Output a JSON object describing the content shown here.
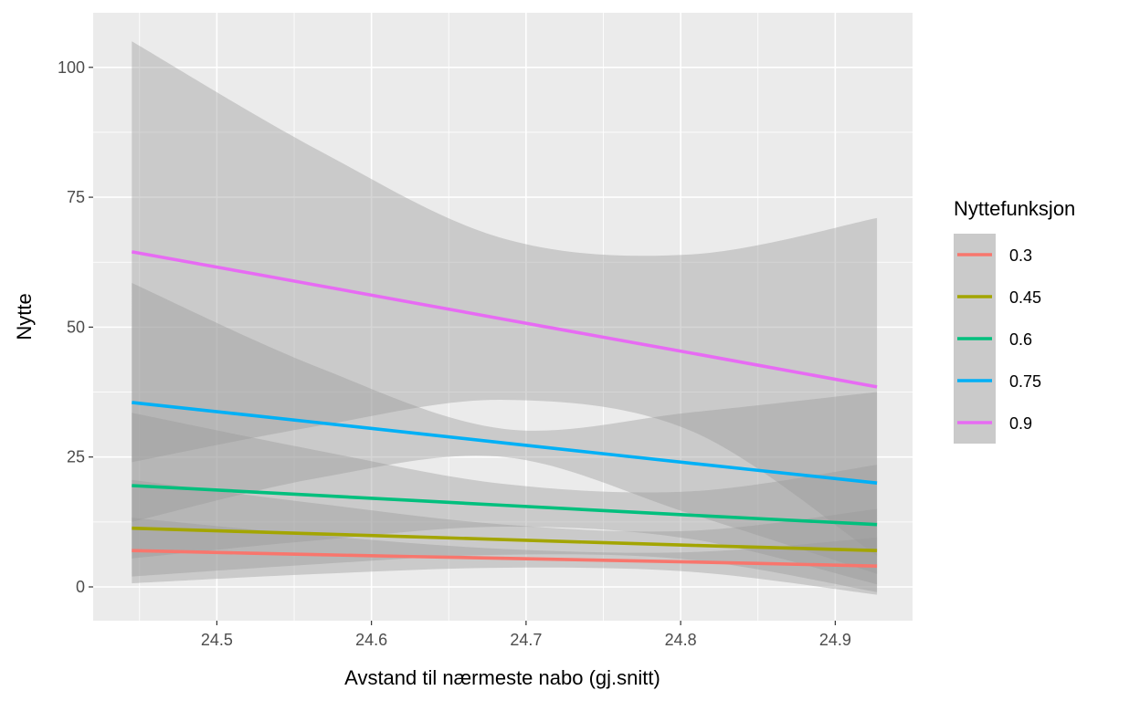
{
  "chart_data": {
    "type": "line",
    "xlabel": "Avstand til nærmeste nabo (gj.snitt)",
    "ylabel": "Nytte",
    "xlim": [
      24.42,
      24.95
    ],
    "ylim": [
      -6.5,
      110.5
    ],
    "x_ticks": [
      24.5,
      24.6,
      24.7,
      24.8,
      24.9
    ],
    "x_tick_labels": [
      "24.5",
      "24.6",
      "24.7",
      "24.8",
      "24.9"
    ],
    "y_ticks": [
      0,
      25,
      50,
      75,
      100
    ],
    "y_tick_labels": [
      "0",
      "25",
      "50",
      "75",
      "100"
    ],
    "grid": true,
    "legend": {
      "title": "Nyttefunksjon",
      "position": "right"
    },
    "x": [
      24.445,
      24.566,
      24.686,
      24.807,
      24.927
    ],
    "series": [
      {
        "name": "0.3",
        "color": "#F8766D",
        "values": [
          7.0,
          6.2,
          5.5,
          4.8,
          4.0
        ],
        "lower": [
          0.7,
          2.5,
          3.7,
          2.9,
          -1.5
        ],
        "upper": [
          13.3,
          9.9,
          7.3,
          6.7,
          9.5
        ]
      },
      {
        "name": "0.45",
        "color": "#A3A500",
        "values": [
          11.3,
          10.2,
          9.1,
          8.0,
          7.0
        ],
        "lower": [
          2.0,
          4.4,
          6.2,
          5.2,
          -1.0
        ],
        "upper": [
          20.6,
          16.0,
          12.0,
          10.8,
          15.0
        ]
      },
      {
        "name": "0.6",
        "color": "#00BF7D",
        "values": [
          19.5,
          17.6,
          15.7,
          13.8,
          12.0
        ],
        "lower": [
          5.5,
          9.0,
          11.6,
          9.2,
          0.5
        ],
        "upper": [
          33.5,
          26.2,
          19.8,
          18.4,
          23.5
        ]
      },
      {
        "name": "0.75",
        "color": "#00B0F6",
        "values": [
          35.5,
          31.6,
          27.7,
          23.8,
          20.0
        ],
        "lower": [
          12.5,
          21.0,
          25.0,
          14.0,
          2.5
        ],
        "upper": [
          58.5,
          42.2,
          30.4,
          33.6,
          37.5
        ]
      },
      {
        "name": "0.9",
        "color": "#E76BF3",
        "values": [
          64.5,
          58.0,
          51.5,
          45.0,
          38.5
        ],
        "lower": [
          24.0,
          31.0,
          36.0,
          30.0,
          6.0
        ],
        "upper": [
          105.0,
          84.0,
          67.0,
          64.0,
          71.0
        ]
      }
    ]
  }
}
